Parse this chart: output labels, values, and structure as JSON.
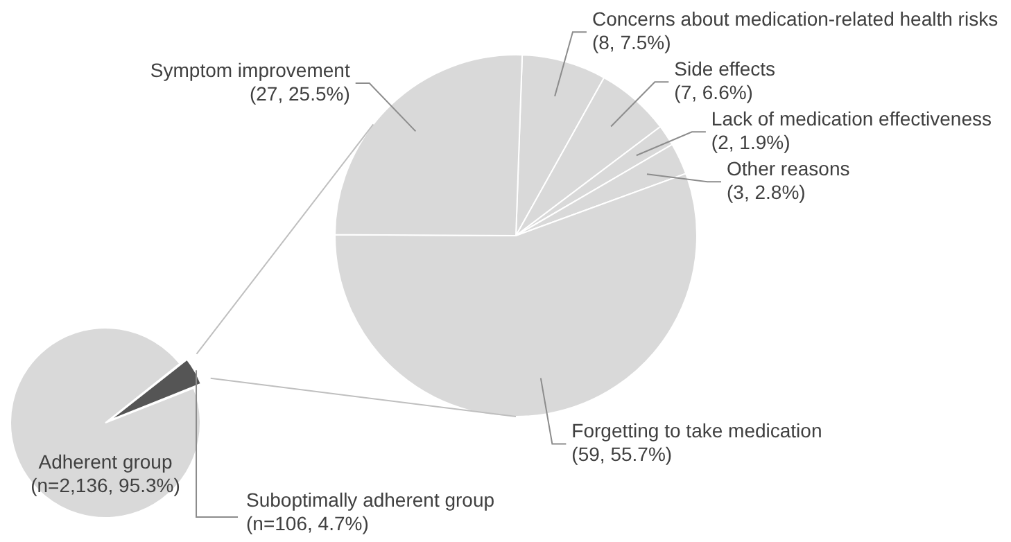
{
  "chart_data": [
    {
      "type": "pie",
      "categories": [
        "Suboptimally adherent group",
        "Adherent group"
      ],
      "values": [
        106,
        2136
      ],
      "value_labels": [
        "(n=106, 4.7%)",
        "(n=2,136, 95.3%)"
      ],
      "colors": [
        "#555555",
        "#d9d9d9"
      ],
      "legend": false
    },
    {
      "type": "pie",
      "categories": [
        "Concerns about medication-related health risks",
        "Side effects",
        "Lack of medication effectiveness",
        "Other reasons",
        "Forgetting to take medication",
        "Symptom improvement"
      ],
      "values": [
        8,
        7,
        2,
        3,
        59,
        27
      ],
      "value_labels": [
        "(8, 7.5%)",
        "(7, 6.6%)",
        "(2, 1.9%)",
        "(3, 2.8%)",
        "(59, 55.7%)",
        "(27, 25.5%)"
      ],
      "colors": [
        "#d9d9d9",
        "#d9d9d9",
        "#d9d9d9",
        "#d9d9d9",
        "#d9d9d9",
        "#d9d9d9"
      ],
      "legend": false
    }
  ]
}
